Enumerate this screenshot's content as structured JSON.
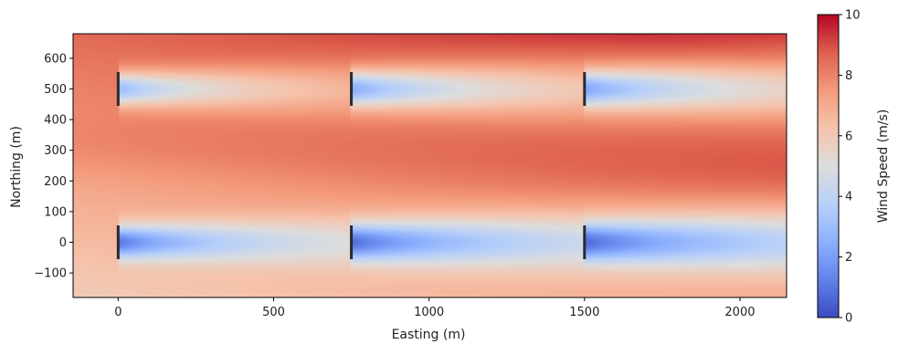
{
  "chart_data": {
    "type": "heatmap",
    "title": "",
    "xlabel": "Easting (m)",
    "ylabel": "Northing (m)",
    "xlim": [
      -145,
      2150
    ],
    "ylim": [
      -180,
      680
    ],
    "xticks": [
      0,
      500,
      1000,
      1500,
      2000
    ],
    "yticks": [
      -100,
      0,
      100,
      200,
      300,
      400,
      500,
      600
    ],
    "colorbar": {
      "label": "Wind Speed (m/s)",
      "min": 0,
      "max": 10,
      "ticks": [
        0,
        2,
        4,
        6,
        8,
        10
      ],
      "colormap": "coolwarm"
    },
    "turbines": [
      {
        "x": 0,
        "y": 500
      },
      {
        "x": 750,
        "y": 500
      },
      {
        "x": 1500,
        "y": 500
      },
      {
        "x": 0,
        "y": 0
      },
      {
        "x": 750,
        "y": 0
      },
      {
        "x": 1500,
        "y": 0
      }
    ],
    "turbine_color": "#2b2b2b"
  }
}
